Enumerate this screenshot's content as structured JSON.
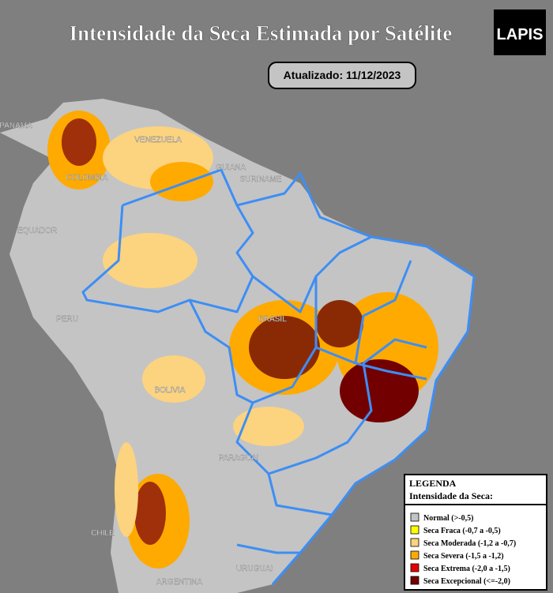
{
  "header": {
    "title": "Intensidade da Seca Estimada por Satélite",
    "logo": "LAPIS",
    "updated": "Atualizado: 11/12/2023"
  },
  "map": {
    "labels": [
      "PANAMÁ",
      "VENEZUELA",
      "COLOMBIA",
      "GUIANA",
      "SURINAME",
      "EQUADOR",
      "PERU",
      "BRASIL",
      "BOLIVIA",
      "PARAGUAI",
      "CHILE",
      "ARGENTINA",
      "URUGUAI"
    ]
  },
  "legend": {
    "title": "LEGENDA",
    "subtitle": "Intensidade da Seca:",
    "items": [
      {
        "label": "Normal (>-0,5)",
        "color": "#c3c3c3"
      },
      {
        "label": "Seca Fraca (-0,7 a -0,5)",
        "color": "#ffff00"
      },
      {
        "label": "Seca Moderada (-1,2 a -0,7)",
        "color": "#fcd37f"
      },
      {
        "label": "Seca Severa (-1,5 a -1,2)",
        "color": "#ffaa00"
      },
      {
        "label": "Seca Extrema (-2,0 a -1,5)",
        "color": "#e60000"
      },
      {
        "label": "Seca Excepcional (<=-2,0)",
        "color": "#730000"
      }
    ]
  }
}
